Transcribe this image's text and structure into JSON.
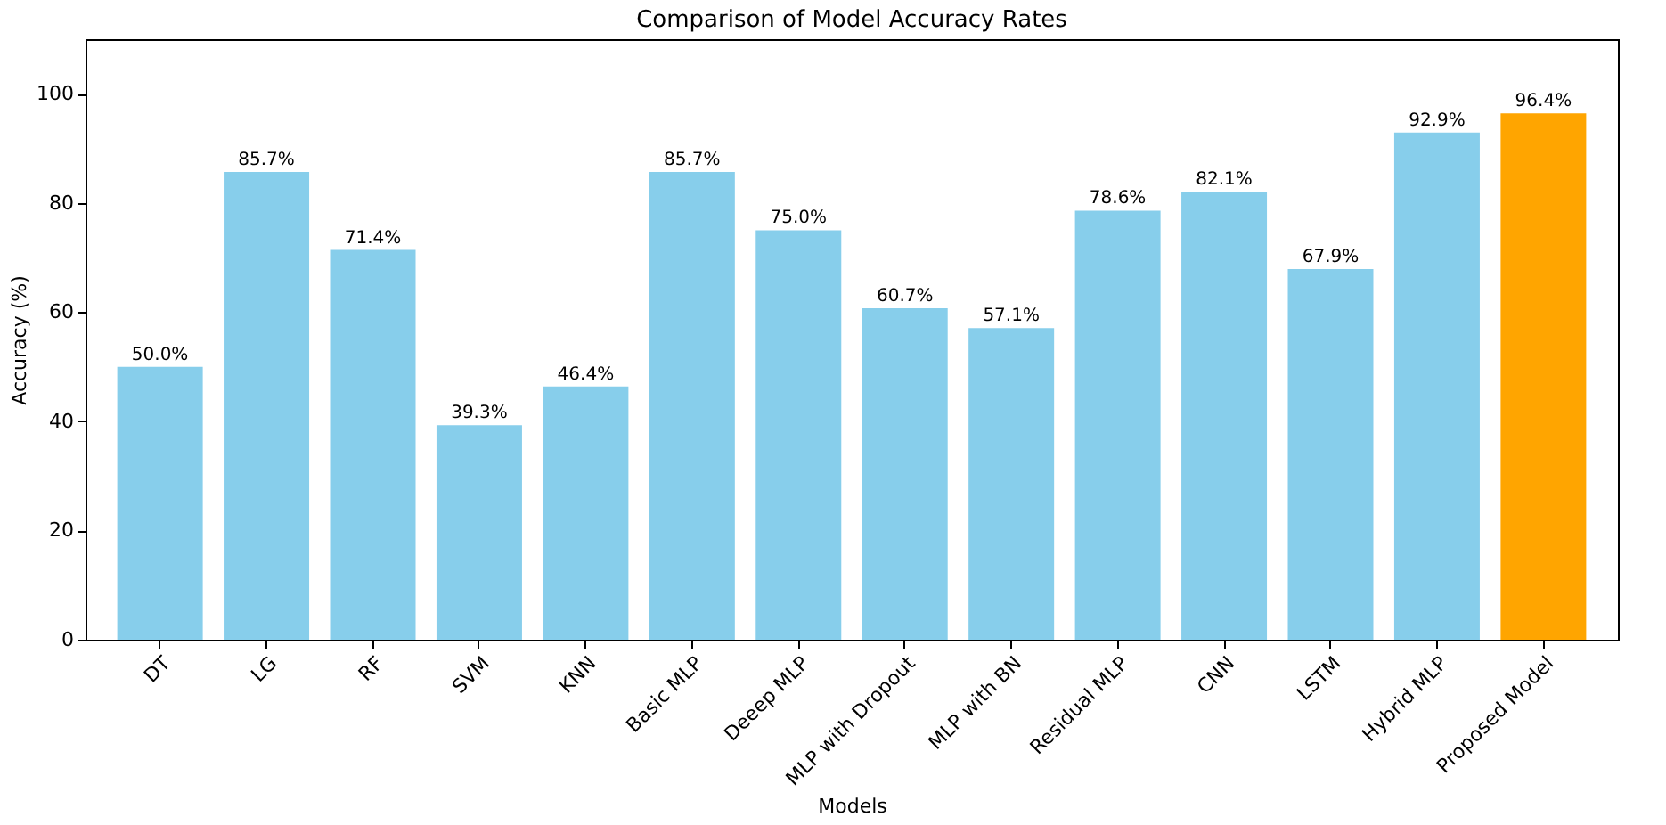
{
  "chart_data": {
    "type": "bar",
    "title": "Comparison of Model Accuracy Rates",
    "xlabel": "Models",
    "ylabel": "Accuracy (%)",
    "categories": [
      "DT",
      "LG",
      "RF",
      "SVM",
      "KNN",
      "Basic MLP",
      "Deeep MLP",
      "MLP with Dropout",
      "MLP with BN",
      "Residual MLP",
      "CNN",
      "LSTM",
      "Hybrid MLP",
      "Proposed Model"
    ],
    "values": [
      50.0,
      85.7,
      71.4,
      39.3,
      46.4,
      85.7,
      75.0,
      60.7,
      57.1,
      78.6,
      82.1,
      67.9,
      92.9,
      96.4
    ],
    "value_labels": [
      "50.0%",
      "85.7%",
      "71.4%",
      "39.3%",
      "46.4%",
      "85.7%",
      "75.0%",
      "60.7%",
      "57.1%",
      "78.6%",
      "82.1%",
      "67.9%",
      "92.9%",
      "96.4%"
    ],
    "colors": [
      "#87ceeb",
      "#87ceeb",
      "#87ceeb",
      "#87ceeb",
      "#87ceeb",
      "#87ceeb",
      "#87ceeb",
      "#87ceeb",
      "#87ceeb",
      "#87ceeb",
      "#87ceeb",
      "#87ceeb",
      "#87ceeb",
      "#ffa500"
    ],
    "ylim": [
      0,
      110
    ],
    "yticks": [
      0,
      20,
      40,
      60,
      80,
      100
    ],
    "grid": false
  }
}
